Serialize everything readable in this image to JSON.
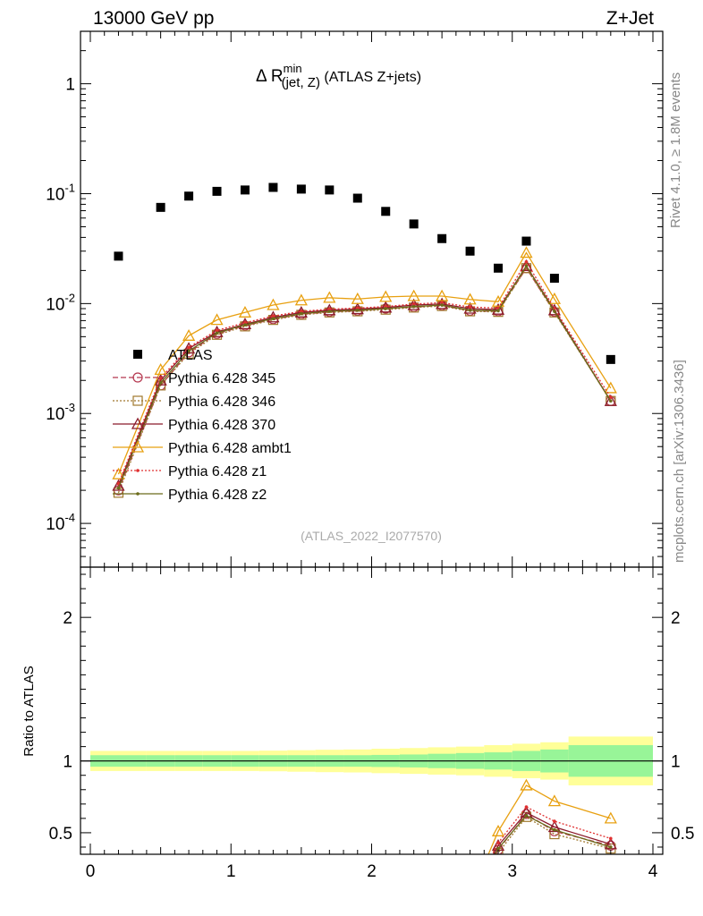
{
  "header": {
    "left": "13000 GeV pp",
    "right": "Z+Jet"
  },
  "side_labels": {
    "rivet": "Rivet 4.1.0, ≥ 1.8M events",
    "mcplots": "mcplots.cern.ch [arXiv:1306.3436]"
  },
  "chart_data": [
    {
      "type": "scatter",
      "panel": "main",
      "title_parts": {
        "delta": "Δ R",
        "sup": "min",
        "sub": "(jet, Z)",
        "tail": " (ATLAS Z+jets)"
      },
      "watermark": "(ATLAS_2022_I2077570)",
      "yscale": "log",
      "xlim": [
        -0.07,
        4.07
      ],
      "ylim": [
        4e-05,
        3
      ],
      "y_tick_labels": [
        {
          "base": "10",
          "exp": "-4",
          "value": 0.0001
        },
        {
          "base": "10",
          "exp": "-3",
          "value": 0.001
        },
        {
          "base": "10",
          "exp": "-2",
          "value": 0.01
        },
        {
          "base": "10",
          "exp": "-1",
          "value": 0.1
        },
        {
          "base": "1",
          "exp": "",
          "value": 1
        }
      ],
      "x": [
        0.2,
        0.5,
        0.7,
        0.9,
        1.1,
        1.3,
        1.5,
        1.7,
        1.9,
        2.1,
        2.3,
        2.5,
        2.7,
        2.9,
        3.1,
        3.3,
        3.7
      ],
      "series": [
        {
          "name": "ATLAS",
          "color": "#000000",
          "marker": "square",
          "line": "none",
          "values": [
            0.027,
            0.075,
            0.095,
            0.105,
            0.108,
            0.114,
            0.11,
            0.108,
            0.091,
            0.069,
            0.053,
            0.039,
            0.03,
            0.021,
            0.037,
            0.017,
            0.0031
          ]
        },
        {
          "name": "Pythia 6.428 345",
          "color": "#b5374f",
          "marker": "circle",
          "line": "dashed",
          "values": [
            0.0002,
            0.0018,
            0.0036,
            0.0053,
            0.0063,
            0.0072,
            0.008,
            0.0084,
            0.0086,
            0.009,
            0.0093,
            0.0096,
            0.0086,
            0.0085,
            0.021,
            0.0084,
            0.0013
          ]
        },
        {
          "name": "Pythia 6.428 346",
          "color": "#a0782d",
          "marker": "square-open",
          "line": "dotted",
          "values": [
            0.00019,
            0.0018,
            0.0035,
            0.0052,
            0.0062,
            0.0071,
            0.0079,
            0.0083,
            0.0085,
            0.0088,
            0.0092,
            0.0095,
            0.0085,
            0.0084,
            0.021,
            0.0083,
            0.0013
          ]
        },
        {
          "name": "Pythia 6.428 370",
          "color": "#8b1a2b",
          "marker": "triangle-open",
          "line": "solid",
          "values": [
            0.00022,
            0.002,
            0.0039,
            0.0055,
            0.0065,
            0.0075,
            0.0083,
            0.0087,
            0.0089,
            0.0092,
            0.0097,
            0.0099,
            0.009,
            0.0088,
            0.022,
            0.0087,
            0.0013
          ]
        },
        {
          "name": "Pythia 6.428 ambt1",
          "color": "#e8a010",
          "marker": "triangle-open",
          "line": "solid",
          "values": [
            0.00028,
            0.0025,
            0.0051,
            0.0071,
            0.0083,
            0.0097,
            0.0107,
            0.0113,
            0.011,
            0.0115,
            0.0117,
            0.0117,
            0.0109,
            0.0104,
            0.029,
            0.011,
            0.0017
          ]
        },
        {
          "name": "Pythia 6.428 z1",
          "color": "#e03030",
          "marker": "dot",
          "line": "dotted",
          "values": [
            0.00023,
            0.0021,
            0.004,
            0.0057,
            0.0067,
            0.0077,
            0.0085,
            0.0089,
            0.0091,
            0.0094,
            0.0099,
            0.0102,
            0.0093,
            0.0091,
            0.024,
            0.009,
            0.0014
          ]
        },
        {
          "name": "Pythia 6.428 z2",
          "color": "#6b6b1a",
          "marker": "dot",
          "line": "solid",
          "values": [
            0.00021,
            0.0019,
            0.0037,
            0.0054,
            0.0064,
            0.0073,
            0.0081,
            0.0085,
            0.0087,
            0.009,
            0.0094,
            0.0097,
            0.0087,
            0.0086,
            0.022,
            0.0085,
            0.0013
          ]
        }
      ]
    },
    {
      "type": "line",
      "panel": "ratio",
      "ylabel": "Ratio to ATLAS",
      "xlim": [
        -0.07,
        4.07
      ],
      "ylim": [
        0.35,
        2.35
      ],
      "x_ticks": [
        0,
        1,
        2,
        3,
        4
      ],
      "x_tick_labels": [
        "0",
        "1",
        "2",
        "3",
        "4"
      ],
      "y_ticks": [
        0.5,
        1,
        2
      ],
      "y_tick_labels": [
        "0.5",
        "1",
        "2"
      ],
      "bands": {
        "x_edges": [
          0.0,
          0.4,
          0.6,
          0.8,
          1.0,
          1.2,
          1.4,
          1.6,
          1.8,
          2.0,
          2.2,
          2.4,
          2.6,
          2.8,
          3.0,
          3.2,
          3.4,
          4.0
        ],
        "inner_halfwidth": [
          0.04,
          0.04,
          0.04,
          0.04,
          0.04,
          0.04,
          0.04,
          0.04,
          0.04,
          0.042,
          0.045,
          0.05,
          0.055,
          0.06,
          0.07,
          0.08,
          0.11
        ],
        "outer_halfwidth": [
          0.07,
          0.07,
          0.07,
          0.07,
          0.07,
          0.072,
          0.075,
          0.078,
          0.08,
          0.085,
          0.09,
          0.095,
          0.1,
          0.11,
          0.12,
          0.13,
          0.17
        ],
        "inner_color": "#98f598",
        "outer_color": "#ffff99"
      },
      "x": [
        2.9,
        3.1,
        3.3,
        3.7
      ],
      "series": [
        {
          "name": "Pythia 6.428 345",
          "color": "#b5374f",
          "line": "dashed",
          "values": [
            0.38,
            0.63,
            0.51,
            0.41
          ]
        },
        {
          "name": "Pythia 6.428 346",
          "color": "#a0782d",
          "line": "dotted",
          "values": [
            0.36,
            0.61,
            0.49,
            0.39
          ]
        },
        {
          "name": "Pythia 6.428 370",
          "color": "#8b1a2b",
          "line": "solid",
          "values": [
            0.41,
            0.64,
            0.54,
            0.42
          ]
        },
        {
          "name": "Pythia 6.428 ambt1",
          "color": "#e8a010",
          "line": "solid",
          "values": [
            0.51,
            0.83,
            0.72,
            0.6
          ]
        },
        {
          "name": "Pythia 6.428 z1",
          "color": "#e03030",
          "line": "dotted",
          "values": [
            0.43,
            0.68,
            0.58,
            0.46
          ]
        },
        {
          "name": "Pythia 6.428 z2",
          "color": "#6b6b1a",
          "line": "solid",
          "values": [
            0.39,
            0.62,
            0.52,
            0.4
          ]
        }
      ]
    }
  ]
}
